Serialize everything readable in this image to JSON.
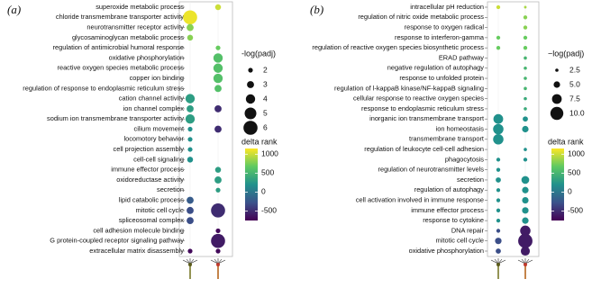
{
  "chart_data": [
    {
      "type": "dot",
      "panel": "(a)",
      "categories": [
        "superoxide metabolic process",
        "chloride transmembrane transporter activity",
        "neurotransmitter receptor activity",
        "glycosaminoglycan metabolic process",
        "regulation of antimicrobial humoral response",
        "oxidative phosphorylation",
        "reactive oxygen species metabolic process",
        "copper ion binding",
        "regulation of response to endoplasmic reticulum stress",
        "cation channel activity",
        "ion channel complex",
        "sodium ion transmembrane transporter activity",
        "cilium movement",
        "locomotory behavior",
        "cell projection assembly",
        "cell-cell signaling",
        "immune effector process",
        "oxidoreductase activity",
        "secretion",
        "lipid catabolic process",
        "mitotic cell cycle",
        "spliceosomal complex",
        "cell adhesion molecule binding",
        "G protein-coupled receptor signaling pathway",
        "extracellular matrix disassembly"
      ],
      "series": [
        {
          "values": [
            null,
            1100,
            800,
            800,
            null,
            null,
            null,
            null,
            null,
            300,
            300,
            300,
            200,
            200,
            200,
            200,
            null,
            null,
            null,
            -200,
            -300,
            -300,
            null,
            null,
            -700
          ],
          "sizes": [
            null,
            6,
            3,
            2.5,
            null,
            null,
            null,
            null,
            null,
            4,
            3,
            4,
            2,
            2,
            2,
            2.5,
            null,
            null,
            null,
            3,
            3,
            3,
            null,
            null,
            2
          ]
        },
        {
          "values": [
            1000,
            null,
            null,
            null,
            700,
            600,
            600,
            600,
            600,
            null,
            -500,
            null,
            -500,
            null,
            null,
            null,
            300,
            300,
            300,
            null,
            -500,
            null,
            -700,
            -600,
            -700
          ],
          "sizes": [
            2.5,
            null,
            null,
            null,
            2,
            4,
            4,
            4,
            3,
            null,
            3,
            null,
            3,
            null,
            null,
            null,
            2.5,
            3,
            2,
            null,
            6,
            null,
            2,
            6,
            2
          ]
        }
      ],
      "size_title": "-log(padj)",
      "sizeticks": [
        2,
        3,
        4,
        5,
        6
      ],
      "color_title": "delta rank",
      "colorlim": [
        -750,
        1150
      ],
      "colorticks": [
        1000,
        500,
        0,
        -500
      ]
    },
    {
      "type": "dot",
      "panel": "(b)",
      "categories": [
        "intracellular pH reduction",
        "regulation of nitric oxide metabolic process",
        "response to oxygen radical",
        "response to interferon-gamma",
        "regulation of reactive oxygen species biosynthetic process",
        "ERAD pathway",
        "negative regulation of autophagy",
        "response to unfolded protein",
        "regulation of l-kappaB kinase/NF-kappaB signaling",
        "cellular response to reactive oxygen species",
        "response to endoplasmic reticulum stress",
        "inorganic ion transmembrane transport",
        "ion homeostasis",
        "transmembrane transport",
        "regulation of leukocyte cell-cell adhesion",
        "phagocytosis",
        "regulation of neurotransmitter levels",
        "secretion",
        "regulation of autophagy",
        "cell activation involved in immune response",
        "immune effector process",
        "response to cytokine",
        "DNA repair",
        "mitotic cell cycle",
        "oxidative phosphorylation"
      ],
      "series": [
        {
          "values": [
            1000,
            null,
            null,
            700,
            700,
            null,
            null,
            null,
            null,
            null,
            null,
            200,
            200,
            200,
            null,
            200,
            200,
            200,
            200,
            200,
            200,
            200,
            -300,
            -300,
            -300
          ],
          "sizes": [
            3,
            null,
            null,
            3,
            3,
            null,
            null,
            null,
            null,
            null,
            null,
            7.5,
            8,
            8,
            null,
            3,
            3,
            4,
            3,
            3,
            3,
            3,
            3,
            5,
            4
          ]
        },
        {
          "values": [
            900,
            800,
            800,
            700,
            700,
            500,
            500,
            500,
            500,
            400,
            400,
            200,
            200,
            null,
            200,
            200,
            null,
            200,
            200,
            200,
            200,
            200,
            -600,
            -600,
            -600
          ],
          "sizes": [
            2,
            3,
            3,
            3,
            3,
            2.5,
            2.5,
            2.5,
            2.5,
            2.5,
            2.5,
            4,
            5,
            null,
            2.5,
            3,
            null,
            6,
            5,
            5,
            5,
            5,
            8,
            11,
            7
          ]
        }
      ],
      "size_title": "−log(padj)",
      "sizeticks": [
        2.5,
        {
          "value": 5,
          "label": "5.0"
        },
        7.5,
        {
          "value": 10,
          "label": "10.0"
        }
      ],
      "color_title": "delta rank",
      "colorlim": [
        -750,
        1150
      ],
      "colorticks": [
        1000,
        500,
        0,
        -500
      ]
    }
  ]
}
